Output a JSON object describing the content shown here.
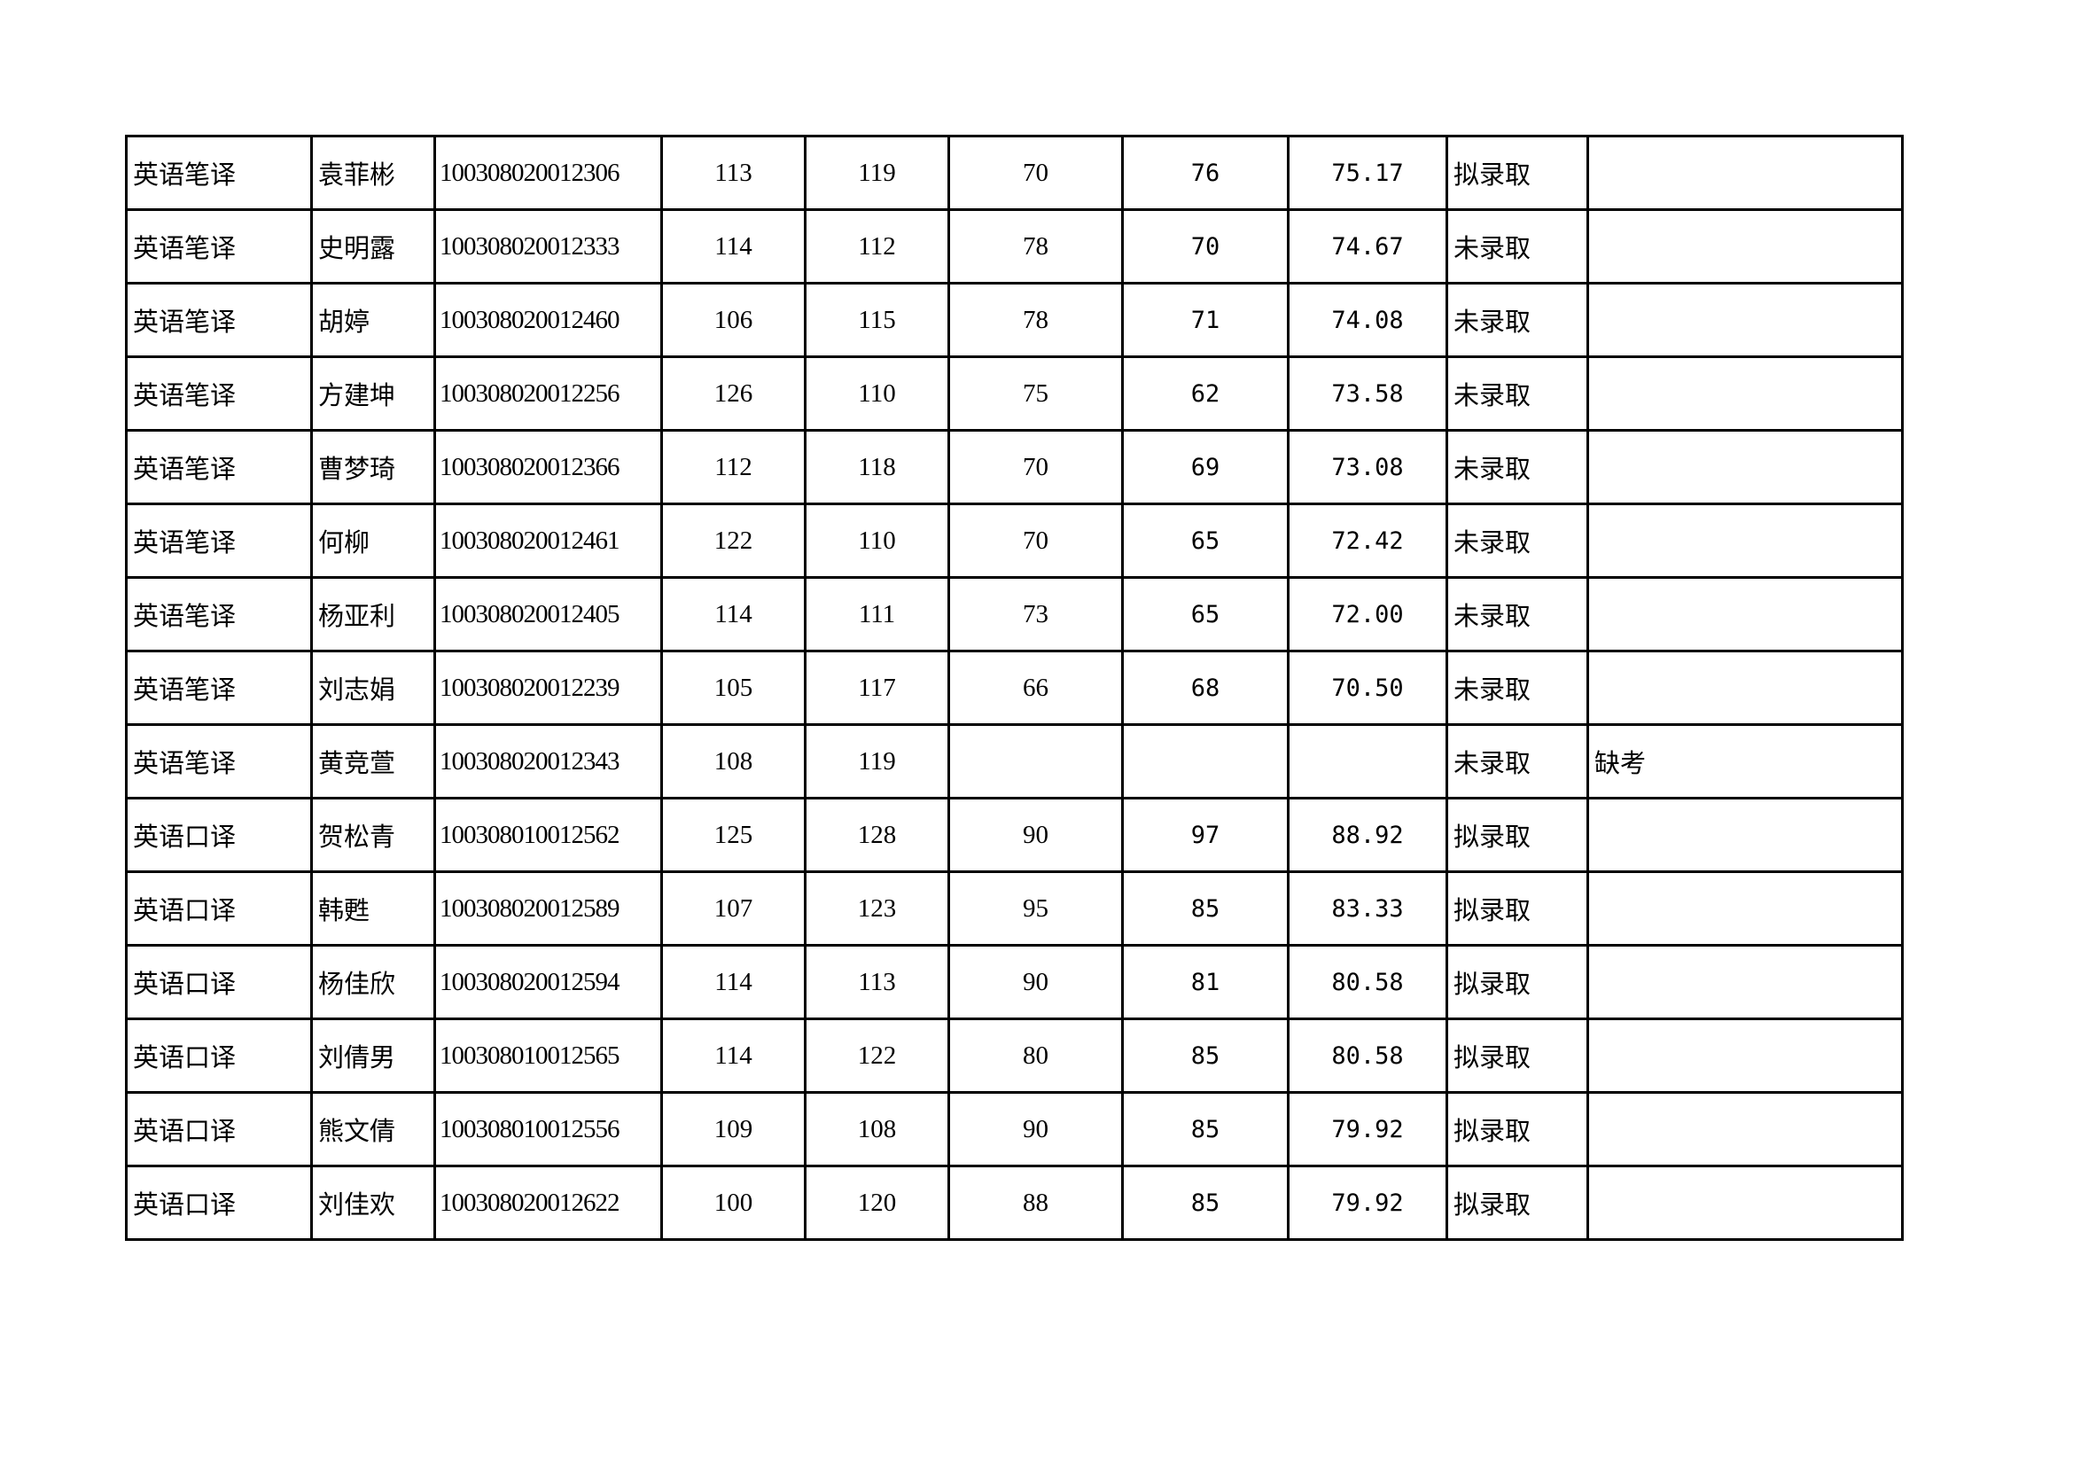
{
  "rows": [
    {
      "major": "英语笔译",
      "name": "袁菲彬",
      "id": "100308020012306",
      "s1": "113",
      "s2": "119",
      "s3": "70",
      "s4": "76",
      "total": "75.17",
      "status": "拟录取",
      "note": ""
    },
    {
      "major": "英语笔译",
      "name": "史明露",
      "id": "100308020012333",
      "s1": "114",
      "s2": "112",
      "s3": "78",
      "s4": "70",
      "total": "74.67",
      "status": "未录取",
      "note": ""
    },
    {
      "major": "英语笔译",
      "name": "胡婷",
      "id": "100308020012460",
      "s1": "106",
      "s2": "115",
      "s3": "78",
      "s4": "71",
      "total": "74.08",
      "status": "未录取",
      "note": ""
    },
    {
      "major": "英语笔译",
      "name": "方建坤",
      "id": "100308020012256",
      "s1": "126",
      "s2": "110",
      "s3": "75",
      "s4": "62",
      "total": "73.58",
      "status": "未录取",
      "note": ""
    },
    {
      "major": "英语笔译",
      "name": "曹梦琦",
      "id": "100308020012366",
      "s1": "112",
      "s2": "118",
      "s3": "70",
      "s4": "69",
      "total": "73.08",
      "status": "未录取",
      "note": ""
    },
    {
      "major": "英语笔译",
      "name": "何柳",
      "id": "100308020012461",
      "s1": "122",
      "s2": "110",
      "s3": "70",
      "s4": "65",
      "total": "72.42",
      "status": "未录取",
      "note": ""
    },
    {
      "major": "英语笔译",
      "name": "杨亚利",
      "id": "100308020012405",
      "s1": "114",
      "s2": "111",
      "s3": "73",
      "s4": "65",
      "total": "72.00",
      "status": "未录取",
      "note": ""
    },
    {
      "major": "英语笔译",
      "name": "刘志娟",
      "id": "100308020012239",
      "s1": "105",
      "s2": "117",
      "s3": "66",
      "s4": "68",
      "total": "70.50",
      "status": "未录取",
      "note": ""
    },
    {
      "major": "英语笔译",
      "name": "黄竞萱",
      "id": "100308020012343",
      "s1": "108",
      "s2": "119",
      "s3": "",
      "s4": "",
      "total": "",
      "status": "未录取",
      "note": "缺考"
    },
    {
      "major": "英语口译",
      "name": "贺松青",
      "id": "100308010012562",
      "s1": "125",
      "s2": "128",
      "s3": "90",
      "s4": "97",
      "total": "88.92",
      "status": "拟录取",
      "note": ""
    },
    {
      "major": "英语口译",
      "name": "韩甦",
      "id": "100308020012589",
      "s1": "107",
      "s2": "123",
      "s3": "95",
      "s4": "85",
      "total": "83.33",
      "status": "拟录取",
      "note": ""
    },
    {
      "major": "英语口译",
      "name": "杨佳欣",
      "id": "100308020012594",
      "s1": "114",
      "s2": "113",
      "s3": "90",
      "s4": "81",
      "total": "80.58",
      "status": "拟录取",
      "note": ""
    },
    {
      "major": "英语口译",
      "name": "刘倩男",
      "id": "100308010012565",
      "s1": "114",
      "s2": "122",
      "s3": "80",
      "s4": "85",
      "total": "80.58",
      "status": "拟录取",
      "note": ""
    },
    {
      "major": "英语口译",
      "name": "熊文倩",
      "id": "100308010012556",
      "s1": "109",
      "s2": "108",
      "s3": "90",
      "s4": "85",
      "total": "79.92",
      "status": "拟录取",
      "note": ""
    },
    {
      "major": "英语口译",
      "name": "刘佳欢",
      "id": "100308020012622",
      "s1": "100",
      "s2": "120",
      "s3": "88",
      "s4": "85",
      "total": "79.92",
      "status": "拟录取",
      "note": ""
    }
  ]
}
